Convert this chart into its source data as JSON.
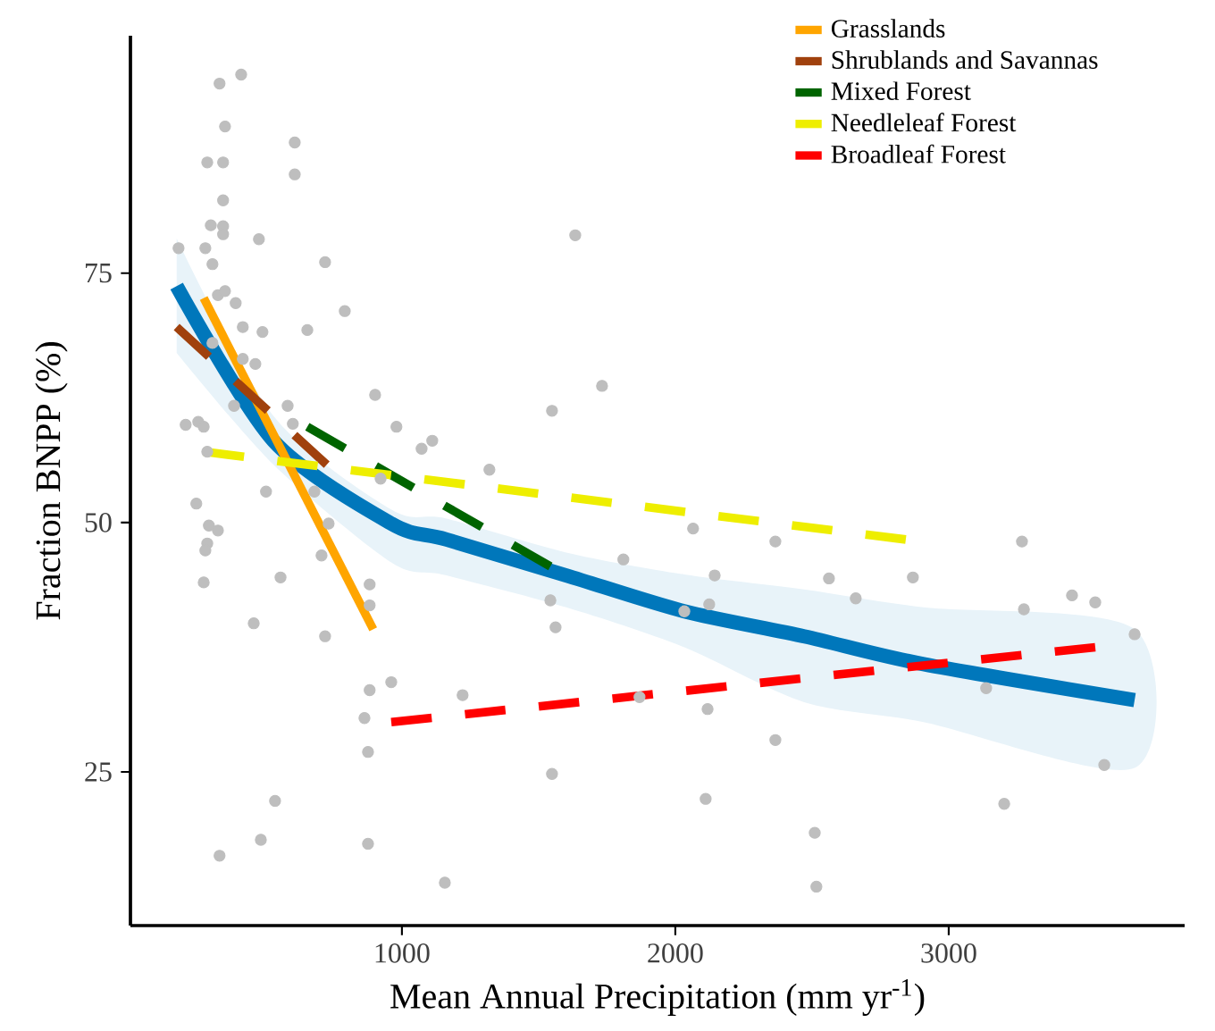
{
  "chart_data": {
    "type": "scatter",
    "xlabel": "Mean Annual Precipitation (mm yr$^{-1}$)",
    "ylabel": "Fraction BNPP (%)",
    "xlim": [
      7,
      3863
    ],
    "ylim": [
      9.6,
      98.8
    ],
    "xticks": [
      1000,
      2000,
      3000
    ],
    "yticks": [
      25,
      50,
      75
    ],
    "legend": "top right",
    "series": [
      {
        "color": "#bebebe",
        "marker": "circle",
        "x": [
          333,
          412,
          353,
          288,
          346,
          608,
          608,
          346,
          301,
          346,
          346,
          477,
          183,
          281,
          307,
          719,
          327,
          353,
          392,
          791,
          418,
          490,
          654,
          307,
          418,
          464,
          386,
          582,
          902,
          209,
          255,
          275,
          601,
          980,
          1072,
          1111,
          288,
          503,
          248,
          680,
          294,
          327,
          288,
          281,
          732,
          706,
          275,
          556,
          882,
          882,
          458,
          719,
          961,
          882,
          863,
          876,
          536,
          484,
          333,
          876,
          1157,
          922,
          1634,
          1732,
          1549,
          1320,
          2065,
          2366,
          3268,
          1810,
          2144,
          2562,
          2869,
          2660,
          2124,
          2033,
          3451,
          3536,
          3275,
          1543,
          1562,
          3680,
          1222,
          1869,
          2118,
          3137,
          2366,
          1549,
          2111,
          3569,
          3203,
          2510,
          2516
        ],
        "values": [
          94.0,
          94.9,
          89.7,
          86.1,
          86.1,
          88.1,
          84.9,
          82.3,
          79.8,
          79.7,
          78.9,
          78.4,
          77.5,
          77.5,
          75.9,
          76.1,
          72.8,
          73.2,
          72.0,
          71.2,
          69.6,
          69.1,
          69.3,
          68.0,
          66.4,
          65.9,
          61.7,
          61.7,
          62.8,
          59.8,
          60.1,
          59.6,
          59.9,
          59.6,
          57.4,
          58.2,
          57.1,
          53.1,
          51.9,
          53.1,
          49.7,
          49.2,
          47.9,
          47.2,
          49.9,
          46.7,
          44.0,
          44.5,
          43.8,
          41.7,
          39.9,
          38.6,
          34.0,
          33.2,
          30.4,
          27.0,
          22.1,
          18.2,
          16.6,
          17.8,
          13.9,
          54.4,
          78.8,
          63.7,
          61.2,
          55.3,
          49.4,
          48.1,
          48.1,
          46.3,
          44.7,
          44.4,
          44.5,
          42.4,
          41.8,
          41.1,
          42.7,
          42.0,
          41.3,
          42.2,
          39.5,
          38.8,
          32.7,
          32.5,
          31.3,
          33.4,
          28.2,
          24.8,
          22.3,
          25.7,
          21.8,
          18.9,
          13.5
        ]
      },
      {
        "type": "line",
        "color": "#0077bb",
        "line_style": "solid",
        "x": [
          176,
          530,
          961,
          1163,
          1601,
          2033,
          2471,
          2908,
          3680
        ],
        "values": [
          73.7,
          58.2,
          49.9,
          48.3,
          44.7,
          41.1,
          38.6,
          35.8,
          32.2
        ],
        "upper": [
          78.5,
          60.7,
          51.3,
          50.4,
          47.0,
          44.8,
          43.3,
          41.5,
          39.3
        ],
        "lower": [
          67.0,
          55.8,
          46.0,
          44.7,
          41.5,
          37.5,
          32.0,
          30.0,
          25.4
        ]
      },
      {
        "type": "line",
        "name": "Grasslands",
        "color": "#ffa500",
        "line_style": "solid",
        "x": [
          275,
          895
        ],
        "values": [
          72.5,
          39.3
        ]
      },
      {
        "type": "line",
        "name": "Shrublands and Savannas",
        "color": "#a0410d",
        "line_style": "dashed",
        "x": [
          176,
          725
        ],
        "values": [
          69.6,
          55.8
        ]
      },
      {
        "type": "line",
        "name": "Mixed Forest",
        "color": "#006400",
        "line_style": "dashed",
        "x": [
          654,
          1543
        ],
        "values": [
          59.6,
          45.6
        ]
      },
      {
        "type": "line",
        "name": "Needleleaf Forest",
        "color": "#eeee00",
        "line_style": "dashed",
        "x": [
          275,
          2843
        ],
        "values": [
          57.1,
          48.3
        ]
      },
      {
        "type": "line",
        "name": "Broadleaf Forest",
        "color": "#ff0000",
        "line_style": "dashed",
        "x": [
          961,
          3536
        ],
        "values": [
          30.0,
          37.5
        ]
      }
    ]
  }
}
